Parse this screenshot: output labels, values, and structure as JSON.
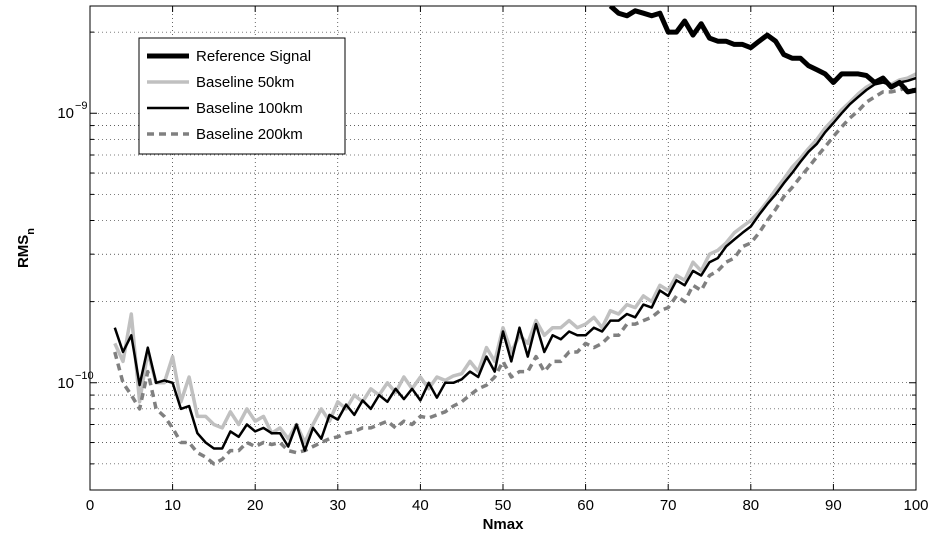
{
  "chart_data": {
    "type": "line",
    "xlabel": "Nmax",
    "ylabel": "RMS",
    "ylabel_sub": "n",
    "xlim": [
      0,
      100
    ],
    "ylim": [
      4e-11,
      2.5e-09
    ],
    "yscale": "log",
    "grid": true,
    "legend_position": "top-left",
    "x_ticks": [
      0,
      10,
      20,
      30,
      40,
      50,
      60,
      70,
      80,
      90,
      100
    ],
    "y_ticks": [
      {
        "value": 1e-10,
        "base": "10",
        "exp": "−10"
      },
      {
        "value": 1e-09,
        "base": "10",
        "exp": "−9"
      }
    ],
    "series": [
      {
        "name": "Reference Signal",
        "color": "#000000",
        "style": "solid-thick",
        "x": [
          63,
          64,
          65,
          66,
          67,
          68,
          69,
          70,
          71,
          72,
          73,
          74,
          75,
          76,
          77,
          78,
          79,
          80,
          81,
          82,
          83,
          84,
          85,
          86,
          87,
          88,
          89,
          90,
          91,
          92,
          93,
          94,
          95,
          96,
          97,
          98,
          99,
          100
        ],
        "y": [
          2.5e-09,
          2.35e-09,
          2.3e-09,
          2.4e-09,
          2.35e-09,
          2.3e-09,
          2.35e-09,
          2e-09,
          2e-09,
          2.2e-09,
          1.95e-09,
          2.15e-09,
          1.9e-09,
          1.85e-09,
          1.85e-09,
          1.8e-09,
          1.8e-09,
          1.75e-09,
          1.85e-09,
          1.95e-09,
          1.85e-09,
          1.65e-09,
          1.6e-09,
          1.6e-09,
          1.5e-09,
          1.45e-09,
          1.4e-09,
          1.3e-09,
          1.4e-09,
          1.4e-09,
          1.4e-09,
          1.38e-09,
          1.3e-09,
          1.35e-09,
          1.25e-09,
          1.3e-09,
          1.2e-09,
          1.22e-09
        ]
      },
      {
        "name": "Baseline 50km",
        "color": "#c0c0c0",
        "style": "solid-light",
        "x": [
          3,
          4,
          5,
          6,
          7,
          8,
          9,
          10,
          11,
          12,
          13,
          14,
          15,
          16,
          17,
          18,
          19,
          20,
          21,
          22,
          23,
          24,
          25,
          26,
          27,
          28,
          29,
          30,
          31,
          32,
          33,
          34,
          35,
          36,
          37,
          38,
          39,
          40,
          41,
          42,
          43,
          44,
          45,
          46,
          47,
          48,
          49,
          50,
          51,
          52,
          53,
          54,
          55,
          56,
          57,
          58,
          59,
          60,
          61,
          62,
          63,
          64,
          65,
          66,
          67,
          68,
          69,
          70,
          71,
          72,
          73,
          74,
          75,
          76,
          77,
          78,
          79,
          80,
          81,
          82,
          83,
          84,
          85,
          86,
          87,
          88,
          89,
          90,
          91,
          92,
          93,
          94,
          95,
          96,
          97,
          98,
          99,
          100
        ],
        "y": [
          1.4e-10,
          1.2e-10,
          1.8e-10,
          8.5e-11,
          1.3e-10,
          1e-10,
          1e-10,
          1.25e-10,
          8.5e-11,
          1.05e-10,
          7.5e-11,
          7.5e-11,
          7e-11,
          6.8e-11,
          7.8e-11,
          7e-11,
          8e-11,
          7.2e-11,
          7.5e-11,
          6.5e-11,
          6.8e-11,
          6.2e-11,
          7e-11,
          6e-11,
          7e-11,
          8e-11,
          7.2e-11,
          8.5e-11,
          8e-11,
          9e-11,
          8.5e-11,
          9.5e-11,
          9e-11,
          1e-10,
          9.2e-11,
          1.05e-10,
          9.5e-11,
          1.05e-10,
          9.5e-11,
          1.05e-10,
          1.02e-10,
          1.06e-10,
          1.08e-10,
          1.2e-10,
          1.1e-10,
          1.35e-10,
          1.2e-10,
          1.6e-10,
          1.3e-10,
          1.5e-10,
          1.4e-10,
          1.7e-10,
          1.5e-10,
          1.6e-10,
          1.6e-10,
          1.7e-10,
          1.6e-10,
          1.65e-10,
          1.75e-10,
          1.6e-10,
          1.85e-10,
          1.8e-10,
          1.95e-10,
          1.9e-10,
          2.1e-10,
          2e-10,
          2.3e-10,
          2.2e-10,
          2.5e-10,
          2.4e-10,
          2.8e-10,
          2.6e-10,
          3e-10,
          3.1e-10,
          3.3e-10,
          3.6e-10,
          3.8e-10,
          4e-10,
          4.3e-10,
          4.7e-10,
          5.2e-10,
          5.7e-10,
          6.3e-10,
          6.8e-10,
          7.4e-10,
          8e-10,
          8.8e-10,
          9.5e-10,
          1.03e-09,
          1.1e-09,
          1.18e-09,
          1.25e-09,
          1.3e-09,
          1.32e-09,
          1.28e-09,
          1.33e-09,
          1.35e-09,
          1.4e-09
        ]
      },
      {
        "name": "Baseline 100km",
        "color": "#000000",
        "style": "solid-thin",
        "x": [
          3,
          4,
          5,
          6,
          7,
          8,
          9,
          10,
          11,
          12,
          13,
          14,
          15,
          16,
          17,
          18,
          19,
          20,
          21,
          22,
          23,
          24,
          25,
          26,
          27,
          28,
          29,
          30,
          31,
          32,
          33,
          34,
          35,
          36,
          37,
          38,
          39,
          40,
          41,
          42,
          43,
          44,
          45,
          46,
          47,
          48,
          49,
          50,
          51,
          52,
          53,
          54,
          55,
          56,
          57,
          58,
          59,
          60,
          61,
          62,
          63,
          64,
          65,
          66,
          67,
          68,
          69,
          70,
          71,
          72,
          73,
          74,
          75,
          76,
          77,
          78,
          79,
          80,
          81,
          82,
          83,
          84,
          85,
          86,
          87,
          88,
          89,
          90,
          91,
          92,
          93,
          94,
          95,
          96,
          97,
          98,
          99,
          100
        ],
        "y": [
          1.6e-10,
          1.3e-10,
          1.5e-10,
          9.8e-11,
          1.35e-10,
          1e-10,
          1.02e-10,
          1e-10,
          8e-11,
          8.2e-11,
          6.5e-11,
          6e-11,
          5.7e-11,
          5.7e-11,
          6.6e-11,
          6.3e-11,
          7e-11,
          6.6e-11,
          6.8e-11,
          6.5e-11,
          6.5e-11,
          5.8e-11,
          7e-11,
          5.6e-11,
          6.8e-11,
          6.2e-11,
          7.6e-11,
          7.3e-11,
          8.3e-11,
          7.6e-11,
          8.6e-11,
          8e-11,
          9e-11,
          8.5e-11,
          9.5e-11,
          8.7e-11,
          9.5e-11,
          8.6e-11,
          1e-10,
          8.8e-11,
          1e-10,
          1e-10,
          1.03e-10,
          1.1e-10,
          1.05e-10,
          1.25e-10,
          1.1e-10,
          1.55e-10,
          1.2e-10,
          1.6e-10,
          1.25e-10,
          1.65e-10,
          1.3e-10,
          1.5e-10,
          1.45e-10,
          1.55e-10,
          1.5e-10,
          1.5e-10,
          1.6e-10,
          1.55e-10,
          1.7e-10,
          1.7e-10,
          1.8e-10,
          1.75e-10,
          1.95e-10,
          1.9e-10,
          2.2e-10,
          2.1e-10,
          2.4e-10,
          2.3e-10,
          2.6e-10,
          2.5e-10,
          2.8e-10,
          2.9e-10,
          3.2e-10,
          3.4e-10,
          3.6e-10,
          3.8e-10,
          4.2e-10,
          4.6e-10,
          5e-10,
          5.5e-10,
          6e-10,
          6.6e-10,
          7.2e-10,
          7.7e-10,
          8.5e-10,
          9.2e-10,
          1e-09,
          1.08e-09,
          1.15e-09,
          1.22e-09,
          1.28e-09,
          1.3e-09,
          1.27e-09,
          1.3e-09,
          1.32e-09,
          1.35e-09
        ]
      },
      {
        "name": "Baseline 200km",
        "color": "#808080",
        "style": "dashed",
        "x": [
          3,
          4,
          5,
          6,
          7,
          8,
          9,
          10,
          11,
          12,
          13,
          14,
          15,
          16,
          17,
          18,
          19,
          20,
          21,
          22,
          23,
          24,
          25,
          26,
          27,
          28,
          29,
          30,
          31,
          32,
          33,
          34,
          35,
          36,
          37,
          38,
          39,
          40,
          41,
          42,
          43,
          44,
          45,
          46,
          47,
          48,
          49,
          50,
          51,
          52,
          53,
          54,
          55,
          56,
          57,
          58,
          59,
          60,
          61,
          62,
          63,
          64,
          65,
          66,
          67,
          68,
          69,
          70,
          71,
          72,
          73,
          74,
          75,
          76,
          77,
          78,
          79,
          80,
          81,
          82,
          83,
          84,
          85,
          86,
          87,
          88,
          89,
          90,
          91,
          92,
          93,
          94,
          95,
          96,
          97,
          98,
          99,
          100
        ],
        "y": [
          1.3e-10,
          1e-10,
          9e-11,
          8e-11,
          1.1e-10,
          8e-11,
          7.5e-11,
          6.8e-11,
          6e-11,
          6e-11,
          5.5e-11,
          5.3e-11,
          5e-11,
          5.2e-11,
          5.6e-11,
          5.6e-11,
          6e-11,
          5.8e-11,
          6e-11,
          5.9e-11,
          6e-11,
          5.6e-11,
          5.5e-11,
          5.6e-11,
          5.8e-11,
          6e-11,
          6.2e-11,
          6.3e-11,
          6.5e-11,
          6.6e-11,
          6.8e-11,
          6.8e-11,
          7e-11,
          7.2e-11,
          6.8e-11,
          7.2e-11,
          7e-11,
          7.5e-11,
          7.4e-11,
          7.6e-11,
          7.8e-11,
          8.2e-11,
          8.5e-11,
          9e-11,
          9.5e-11,
          9.8e-11,
          1.05e-10,
          1.2e-10,
          1.05e-10,
          1.1e-10,
          1.1e-10,
          1.25e-10,
          1.1e-10,
          1.2e-10,
          1.2e-10,
          1.3e-10,
          1.3e-10,
          1.4e-10,
          1.35e-10,
          1.4e-10,
          1.5e-10,
          1.5e-10,
          1.65e-10,
          1.65e-10,
          1.7e-10,
          1.75e-10,
          1.85e-10,
          1.9e-10,
          2.1e-10,
          2e-10,
          2.3e-10,
          2.2e-10,
          2.5e-10,
          2.6e-10,
          2.8e-10,
          2.9e-10,
          3.2e-10,
          3.3e-10,
          3.6e-10,
          4e-10,
          4.4e-10,
          4.9e-10,
          5.3e-10,
          5.8e-10,
          6.3e-10,
          6.9e-10,
          7.5e-10,
          8.2e-10,
          8.9e-10,
          9.6e-10,
          1.02e-09,
          1.1e-09,
          1.15e-09,
          1.2e-09,
          1.2e-09,
          1.22e-09,
          1.25e-09,
          1.2e-09
        ]
      }
    ]
  }
}
